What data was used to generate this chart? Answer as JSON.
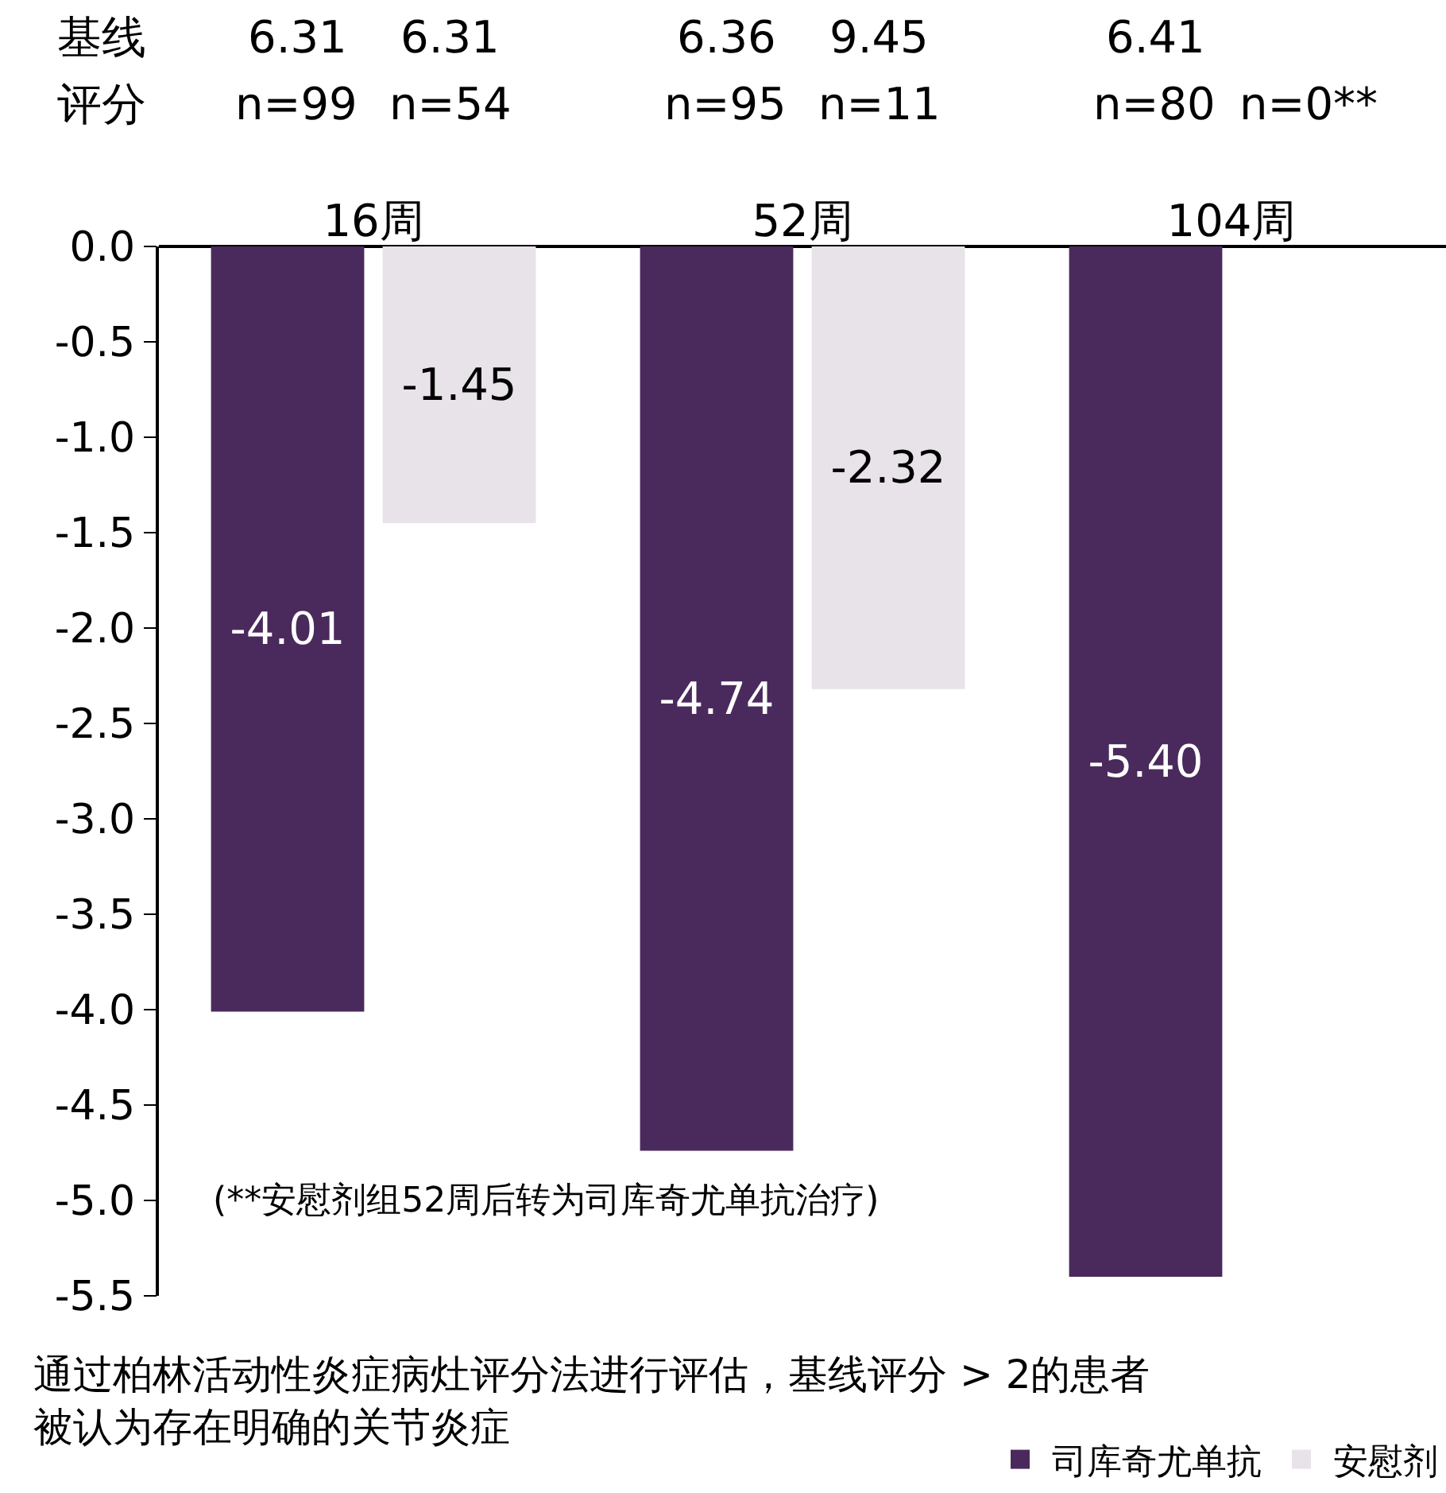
{
  "chart_data": {
    "type": "bar",
    "categories": [
      "16周",
      "52周",
      "104周"
    ],
    "series": [
      {
        "name": "司库奇尤单抗",
        "color": "#4a2a5c",
        "values": [
          -4.01,
          -4.74,
          -5.4
        ],
        "value_labels": [
          "-4.01",
          "-4.74",
          "-5.40"
        ]
      },
      {
        "name": "安慰剂",
        "color": "#e8e2e9",
        "values": [
          -1.45,
          -2.32,
          null
        ],
        "value_labels": [
          "-1.45",
          "-2.32",
          null
        ]
      }
    ],
    "ylim": [
      -5.5,
      0
    ],
    "yticks": [
      {
        "value": 0,
        "label": "0.0"
      },
      {
        "value": -0.5,
        "label": "-0.5"
      },
      {
        "value": -1,
        "label": "-1.0"
      },
      {
        "value": -1.5,
        "label": "-1.5"
      },
      {
        "value": -2,
        "label": "-2.0"
      },
      {
        "value": -2.5,
        "label": "-2.5"
      },
      {
        "value": -3,
        "label": "-3.0"
      },
      {
        "value": -3.5,
        "label": "-3.5"
      },
      {
        "value": -4,
        "label": "-4.0"
      },
      {
        "value": -4.5,
        "label": "-4.5"
      },
      {
        "value": -5,
        "label": "-5.0"
      },
      {
        "value": -5.5,
        "label": "-5.5"
      }
    ],
    "grid": false,
    "legend": "bottom right",
    "annotations": [
      "基线",
      "评分",
      "6.31",
      "n=99",
      "6.31",
      "n=54",
      "6.36",
      "n=95",
      "9.45",
      "n=11",
      "6.41",
      "n=80",
      "n=0**",
      "(**安慰剂组52周后转为司库奇尤单抗治疗)",
      "通过柏林活动性炎症病灶评分法进行评估，基线评分 > 2的患者",
      "被认为存在明确的关节炎症"
    ]
  }
}
